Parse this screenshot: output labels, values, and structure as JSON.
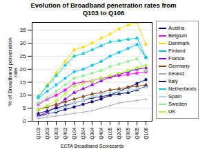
{
  "chart_data": {
    "type": "line",
    "title": "Evolution of Broadband penetration rates from\nQ103 to Q106",
    "xlabel": "ECTA Broadband Scorecards",
    "ylabel": "% of Broadband penetration\nrate.",
    "categories": [
      "Q103",
      "Q203",
      "Q303",
      "Q403",
      "Q104",
      "Q204",
      "Q304",
      "Q404",
      "Q105",
      "Q205",
      "Q305",
      "Q405",
      "Q106"
    ],
    "ylim": [
      0,
      38
    ],
    "yticks": [
      0,
      5,
      10,
      15,
      20,
      25,
      30,
      35
    ],
    "grid": true,
    "legend": "right",
    "series": [
      {
        "name": "Austria",
        "color": "#000080",
        "marker": "square",
        "values": [
          2.0,
          2.8,
          3.5,
          4.5,
          5.5,
          6.5,
          7.5,
          8.5,
          10.0,
          11.5,
          13.0,
          14.5,
          16.0
        ]
      },
      {
        "name": "Belgium",
        "color": "#FF00FF",
        "marker": "star",
        "values": [
          6.5,
          8.5,
          10.0,
          12.0,
          14.5,
          15.0,
          15.5,
          16.5,
          17.0,
          17.5,
          18.0,
          18.5,
          19.0
        ]
      },
      {
        "name": "Denmark",
        "color": "#FFD700",
        "marker": "triangle",
        "values": [
          9.5,
          14.0,
          18.5,
          23.0,
          27.5,
          28.5,
          30.0,
          32.0,
          33.5,
          35.5,
          37.0,
          38.0,
          29.5
        ]
      },
      {
        "name": "Finland",
        "color": "#00BFFF",
        "marker": "square",
        "values": [
          9.0,
          11.5,
          14.0,
          16.5,
          19.0,
          20.0,
          21.5,
          23.0,
          25.0,
          26.5,
          28.0,
          29.5,
          24.5
        ]
      },
      {
        "name": "France",
        "color": "#9400D3",
        "marker": "triangle",
        "values": [
          2.0,
          3.5,
          5.5,
          8.5,
          11.0,
          12.5,
          14.0,
          15.5,
          17.0,
          18.0,
          19.0,
          20.0,
          20.5
        ]
      },
      {
        "name": "Germany",
        "color": "#8B4513",
        "marker": "triangle",
        "values": [
          4.5,
          5.5,
          6.5,
          7.5,
          8.5,
          9.5,
          10.5,
          11.0,
          12.0,
          12.5,
          13.0,
          13.5,
          14.0
        ]
      },
      {
        "name": "Ireland",
        "color": "#A9A9A9",
        "marker": "plus",
        "values": [
          1.0,
          1.5,
          2.0,
          2.5,
          3.0,
          3.5,
          4.0,
          5.0,
          6.0,
          7.0,
          7.5,
          8.0,
          8.5
        ]
      },
      {
        "name": "Italy",
        "color": "#191970",
        "marker": "triangle",
        "values": [
          3.0,
          4.0,
          5.0,
          6.0,
          7.0,
          8.0,
          9.0,
          9.5,
          10.0,
          10.5,
          11.0,
          12.0,
          13.5
        ]
      },
      {
        "name": "Netherlands",
        "color": "#00CED1",
        "marker": "triangle",
        "values": [
          9.5,
          13.5,
          17.5,
          21.5,
          25.0,
          26.0,
          27.5,
          29.0,
          30.5,
          31.0,
          31.5,
          32.0,
          24.5
        ]
      },
      {
        "name": "Spain",
        "color": "#ADD8E6",
        "marker": "square",
        "values": [
          1.5,
          2.5,
          4.0,
          5.5,
          7.0,
          8.0,
          9.5,
          10.5,
          11.0,
          11.5,
          12.0,
          12.5,
          13.0
        ]
      },
      {
        "name": "Sweden",
        "color": "#90EE90",
        "marker": "square",
        "values": [
          7.0,
          9.0,
          11.5,
          14.0,
          16.5,
          17.5,
          18.5,
          19.5,
          21.0,
          22.0,
          23.0,
          24.0,
          19.5
        ]
      },
      {
        "name": "UK",
        "color": "#ADFF2F",
        "marker": "square",
        "values": [
          4.5,
          6.0,
          8.0,
          10.5,
          13.5,
          14.5,
          15.5,
          16.5,
          17.5,
          18.5,
          19.5,
          20.5,
          21.5
        ]
      }
    ]
  }
}
